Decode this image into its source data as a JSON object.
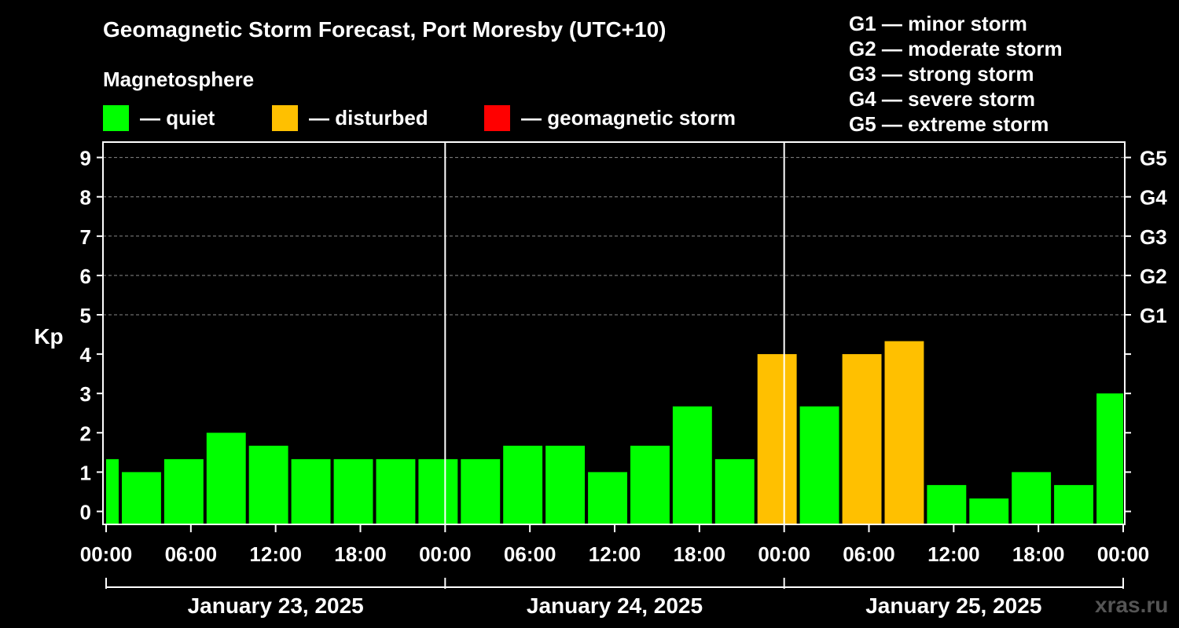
{
  "header": {
    "title": "Geomagnetic Storm Forecast, Port Moresby (UTC+10)",
    "subtitle": "Magnetosphere"
  },
  "legend": [
    {
      "label": "— quiet",
      "color": "#00ff00"
    },
    {
      "label": "— disturbed",
      "color": "#ffc000"
    },
    {
      "label": "— geomagnetic storm",
      "color": "#ff0000"
    }
  ],
  "storm_scale": [
    {
      "label": "G1 — minor storm"
    },
    {
      "label": "G2 — moderate storm"
    },
    {
      "label": "G3 — strong storm"
    },
    {
      "label": "G4 — severe storm"
    },
    {
      "label": "G5 — extreme storm"
    }
  ],
  "watermark": "xras.ru",
  "chart_data": {
    "type": "bar",
    "ylabel": "Kp",
    "ylim": [
      -0.3,
      9.4
    ],
    "yticks": [
      "0",
      "1",
      "2",
      "3",
      "4",
      "5",
      "6",
      "7",
      "8",
      "9"
    ],
    "right_ticks": [
      {
        "kp": 5,
        "label": "G1"
      },
      {
        "kp": 6,
        "label": "G2"
      },
      {
        "kp": 7,
        "label": "G3"
      },
      {
        "kp": 8,
        "label": "G4"
      },
      {
        "kp": 9,
        "label": "G5"
      }
    ],
    "grid": true,
    "xlim_hours": [
      0,
      72
    ],
    "xtick_labels": [
      "00:00",
      "06:00",
      "12:00",
      "18:00",
      "00:00",
      "06:00",
      "12:00",
      "18:00",
      "00:00",
      "06:00",
      "12:00",
      "18:00",
      "00:00"
    ],
    "days": [
      "January 23, 2025",
      "January 24, 2025",
      "January 25, 2025"
    ],
    "bars": [
      {
        "start": 0,
        "end": 1,
        "kp": 1.33,
        "level": "quiet"
      },
      {
        "start": 1,
        "end": 4,
        "kp": 1.0,
        "level": "quiet"
      },
      {
        "start": 4,
        "end": 7,
        "kp": 1.33,
        "level": "quiet"
      },
      {
        "start": 7,
        "end": 10,
        "kp": 2.0,
        "level": "quiet"
      },
      {
        "start": 10,
        "end": 13,
        "kp": 1.67,
        "level": "quiet"
      },
      {
        "start": 13,
        "end": 16,
        "kp": 1.33,
        "level": "quiet"
      },
      {
        "start": 16,
        "end": 19,
        "kp": 1.33,
        "level": "quiet"
      },
      {
        "start": 19,
        "end": 22,
        "kp": 1.33,
        "level": "quiet"
      },
      {
        "start": 22,
        "end": 25,
        "kp": 1.33,
        "level": "quiet"
      },
      {
        "start": 25,
        "end": 28,
        "kp": 1.33,
        "level": "quiet"
      },
      {
        "start": 28,
        "end": 31,
        "kp": 1.67,
        "level": "quiet"
      },
      {
        "start": 31,
        "end": 34,
        "kp": 1.67,
        "level": "quiet"
      },
      {
        "start": 34,
        "end": 37,
        "kp": 1.0,
        "level": "quiet"
      },
      {
        "start": 37,
        "end": 40,
        "kp": 1.67,
        "level": "quiet"
      },
      {
        "start": 40,
        "end": 43,
        "kp": 2.67,
        "level": "quiet"
      },
      {
        "start": 43,
        "end": 46,
        "kp": 1.33,
        "level": "quiet"
      },
      {
        "start": 46,
        "end": 49,
        "kp": 4.0,
        "level": "disturbed"
      },
      {
        "start": 49,
        "end": 52,
        "kp": 2.67,
        "level": "quiet"
      },
      {
        "start": 52,
        "end": 55,
        "kp": 4.0,
        "level": "disturbed"
      },
      {
        "start": 55,
        "end": 58,
        "kp": 4.33,
        "level": "disturbed"
      },
      {
        "start": 58,
        "end": 61,
        "kp": 0.67,
        "level": "quiet"
      },
      {
        "start": 61,
        "end": 64,
        "kp": 0.33,
        "level": "quiet"
      },
      {
        "start": 64,
        "end": 67,
        "kp": 1.0,
        "level": "quiet"
      },
      {
        "start": 67,
        "end": 70,
        "kp": 0.67,
        "level": "quiet"
      },
      {
        "start": 70,
        "end": 72,
        "kp": 3.0,
        "level": "quiet"
      }
    ]
  }
}
